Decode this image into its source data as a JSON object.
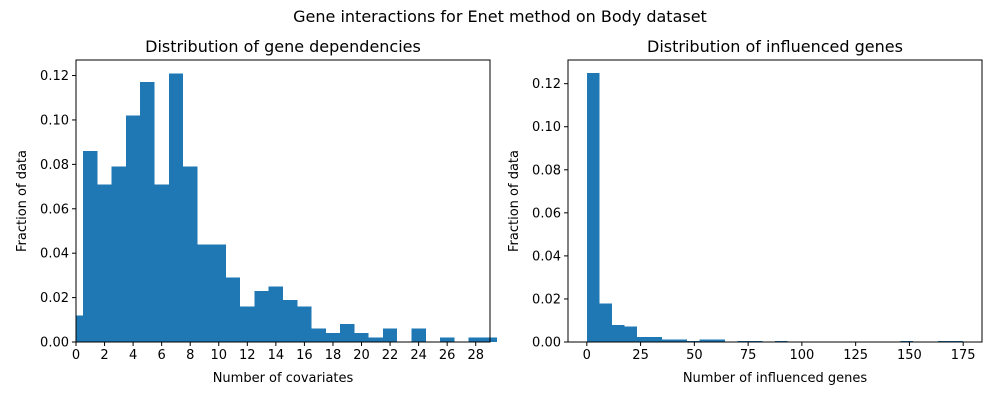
{
  "figure": {
    "suptitle": "Gene interactions for Enet method on Body dataset"
  },
  "chart_data": [
    {
      "type": "bar",
      "title": "Distribution of gene dependencies",
      "xlabel": "Number of covariates",
      "ylabel": "Fraction of data",
      "color": "#1f77b4",
      "xlim": [
        0,
        29
      ],
      "ylim": [
        0,
        0.127
      ],
      "xticks": [
        0,
        2,
        4,
        6,
        8,
        10,
        12,
        14,
        16,
        18,
        20,
        22,
        24,
        26,
        28
      ],
      "yticks": [
        0.0,
        0.02,
        0.04,
        0.06,
        0.08,
        0.1,
        0.12
      ],
      "ytick_labels": [
        "0.00",
        "0.02",
        "0.04",
        "0.06",
        "0.08",
        "0.10",
        "0.12"
      ],
      "bin_width": 1,
      "bins": [
        {
          "x": 0,
          "value": 0.012
        },
        {
          "x": 0.5,
          "value": 0.086
        },
        {
          "x": 1.5,
          "value": 0.071
        },
        {
          "x": 2.5,
          "value": 0.079
        },
        {
          "x": 3.5,
          "value": 0.102
        },
        {
          "x": 4.5,
          "value": 0.117
        },
        {
          "x": 5.5,
          "value": 0.071
        },
        {
          "x": 6.5,
          "value": 0.121
        },
        {
          "x": 7.5,
          "value": 0.079
        },
        {
          "x": 8.5,
          "value": 0.044
        },
        {
          "x": 9.5,
          "value": 0.044
        },
        {
          "x": 10.5,
          "value": 0.029
        },
        {
          "x": 11.5,
          "value": 0.016
        },
        {
          "x": 12.5,
          "value": 0.023
        },
        {
          "x": 13.5,
          "value": 0.025
        },
        {
          "x": 14.5,
          "value": 0.019
        },
        {
          "x": 15.5,
          "value": 0.016
        },
        {
          "x": 16.5,
          "value": 0.006
        },
        {
          "x": 17.5,
          "value": 0.004
        },
        {
          "x": 18.5,
          "value": 0.008
        },
        {
          "x": 19.5,
          "value": 0.004
        },
        {
          "x": 20.5,
          "value": 0.002
        },
        {
          "x": 21.5,
          "value": 0.006
        },
        {
          "x": 23.5,
          "value": 0.006
        },
        {
          "x": 25.5,
          "value": 0.002
        },
        {
          "x": 27.5,
          "value": 0.002
        },
        {
          "x": 28.5,
          "value": 0.002
        }
      ]
    },
    {
      "type": "bar",
      "title": "Distribution of influenced genes",
      "xlabel": "Number of influenced genes",
      "ylabel": "Fraction of data",
      "color": "#1f77b4",
      "xlim": [
        -8.75,
        183.75
      ],
      "ylim": [
        0,
        0.131
      ],
      "xticks": [
        0,
        25,
        50,
        75,
        100,
        125,
        150,
        175
      ],
      "yticks": [
        0.0,
        0.02,
        0.04,
        0.06,
        0.08,
        0.1,
        0.12
      ],
      "ytick_labels": [
        "0.00",
        "0.02",
        "0.04",
        "0.06",
        "0.08",
        "0.10",
        "0.12"
      ],
      "bin_width": 5.83,
      "bins": [
        {
          "x": 0,
          "value": 0.125
        },
        {
          "x": 5.83,
          "value": 0.018
        },
        {
          "x": 11.67,
          "value": 0.008
        },
        {
          "x": 17.5,
          "value": 0.0073
        },
        {
          "x": 23.33,
          "value": 0.0023
        },
        {
          "x": 29.17,
          "value": 0.0023
        },
        {
          "x": 35.0,
          "value": 0.0012
        },
        {
          "x": 40.83,
          "value": 0.0012
        },
        {
          "x": 46.67,
          "value": 0.0004
        },
        {
          "x": 52.5,
          "value": 0.0012
        },
        {
          "x": 58.33,
          "value": 0.0012
        },
        {
          "x": 70.0,
          "value": 0.0004
        },
        {
          "x": 75.83,
          "value": 0.0004
        },
        {
          "x": 87.5,
          "value": 0.0004
        },
        {
          "x": 145.83,
          "value": 0.0004
        },
        {
          "x": 163.33,
          "value": 0.0004
        },
        {
          "x": 169.17,
          "value": 0.0004
        }
      ]
    }
  ]
}
